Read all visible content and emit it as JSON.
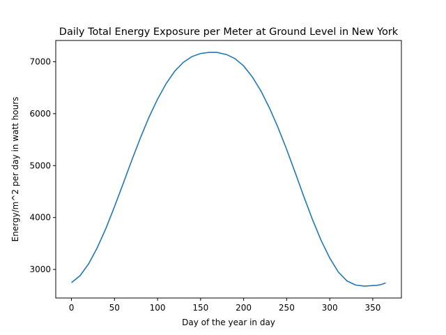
{
  "chart_data": {
    "type": "line",
    "title": "Daily Total Energy Exposure per Meter at Ground Level in New York",
    "xlabel": "Day of the year in day",
    "ylabel": "Energy/m^2 per day in watt hours",
    "xlim": [
      -18.25,
      383.25
    ],
    "ylim": [
      2450,
      7410
    ],
    "xticks": [
      0,
      50,
      100,
      150,
      200,
      250,
      300,
      350
    ],
    "yticks": [
      3000,
      4000,
      5000,
      6000,
      7000
    ],
    "grid": false,
    "line_color": "#1f77b4",
    "series": [
      {
        "x": [
          0,
          10,
          20,
          30,
          40,
          50,
          60,
          70,
          80,
          90,
          100,
          110,
          120,
          130,
          140,
          150,
          160,
          169,
          180,
          190,
          200,
          210,
          220,
          230,
          240,
          250,
          260,
          270,
          280,
          290,
          300,
          310,
          320,
          330,
          340,
          350,
          355,
          360,
          365
        ],
        "values": [
          2745,
          2880,
          3110,
          3420,
          3790,
          4210,
          4650,
          5100,
          5530,
          5930,
          6280,
          6580,
          6820,
          6990,
          7100,
          7160,
          7180,
          7180,
          7140,
          7060,
          6920,
          6710,
          6440,
          6110,
          5730,
          5310,
          4860,
          4400,
          3960,
          3560,
          3220,
          2950,
          2780,
          2700,
          2680,
          2690,
          2695,
          2710,
          2740
        ]
      }
    ]
  }
}
